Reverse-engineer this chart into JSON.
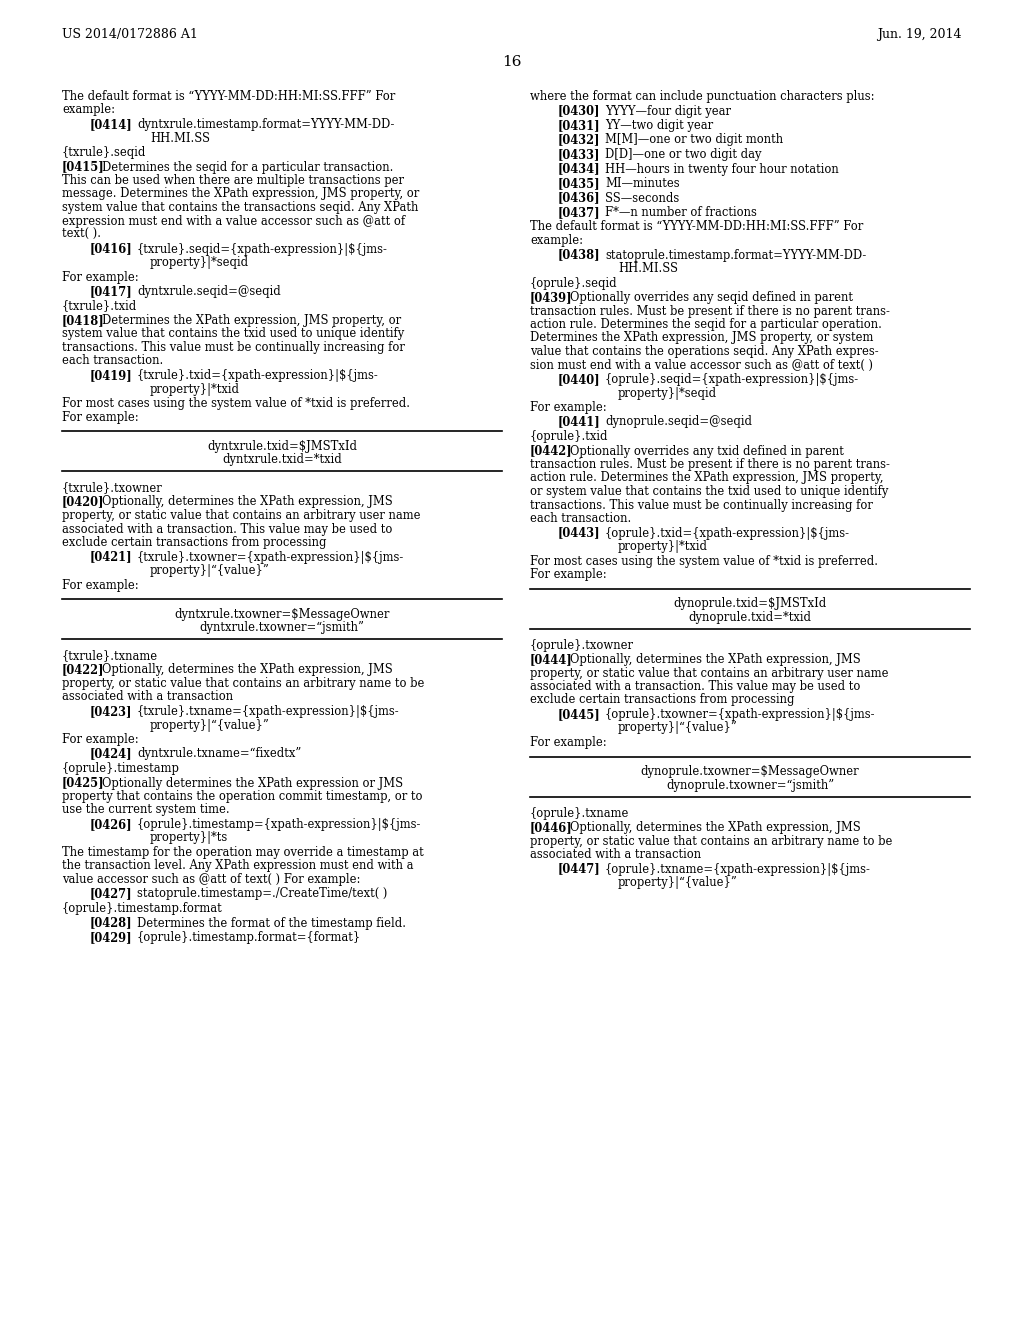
{
  "background_color": "#ffffff",
  "header_left": "US 2014/0172886 A1",
  "header_right": "Jun. 19, 2014",
  "page_number": "16",
  "left_col_blocks": [
    {
      "type": "plain",
      "lines": [
        "The default format is “YYYY-MM-DD:HH:MI:SS.FFF” For",
        "example:"
      ]
    },
    {
      "type": "tagged_indent",
      "tag": "[0414]",
      "continuation": "         ",
      "text": "dyntxrule.timestamp.format=YYYY-MM-DD-\nHH.MI.SS"
    },
    {
      "type": "plain",
      "lines": [
        "{txrule}.seqid"
      ]
    },
    {
      "type": "tagged_para",
      "tag": "[0415]",
      "text": "Determines the seqid for a particular transaction.\nThis can be used when there are multiple transactions per\nmessage. Determines the XPath expression, JMS property, or\nsystem value that contains the transactions seqid. Any XPath\nexpression must end with a value accessor such as @att of\ntext( )."
    },
    {
      "type": "tagged_indent",
      "tag": "[0416]",
      "continuation": "         ",
      "text": "{txrule}.seqid={xpath-expression}|${jms-\nproperty}|*seqid"
    },
    {
      "type": "plain",
      "lines": [
        "For example:"
      ]
    },
    {
      "type": "tagged_indent",
      "tag": "[0417]",
      "continuation": "",
      "text": "dyntxrule.seqid=@seqid"
    },
    {
      "type": "plain",
      "lines": [
        "{txrule}.txid"
      ]
    },
    {
      "type": "tagged_para",
      "tag": "[0418]",
      "text": "Determines the XPath expression, JMS property, or\nsystem value that contains the txid used to unique identify\ntransactions. This value must be continually increasing for\neach transaction."
    },
    {
      "type": "tagged_indent",
      "tag": "[0419]",
      "continuation": "         ",
      "text": "{txrule}.txid={xpath-expression}|${jms-\nproperty}|*txid"
    },
    {
      "type": "plain",
      "lines": [
        "For most cases using the system value of *txid is preferred.",
        "For example:"
      ]
    },
    {
      "type": "box",
      "lines": [
        "dyntxrule.txid=$JMSTxId",
        "dyntxrule.txid=*txid"
      ]
    },
    {
      "type": "plain",
      "lines": [
        "{txrule}.txowner"
      ]
    },
    {
      "type": "tagged_para",
      "tag": "[0420]",
      "text": "Optionally, determines the XPath expression, JMS\nproperty, or static value that contains an arbitrary user name\nassociated with a transaction. This value may be used to\nexclude certain transactions from processing"
    },
    {
      "type": "tagged_indent",
      "tag": "[0421]",
      "continuation": "         ",
      "text": "{txrule}.txowner={xpath-expression}|${jms-\nproperty}|“{value}”"
    },
    {
      "type": "plain",
      "lines": [
        "For example:"
      ]
    },
    {
      "type": "box",
      "lines": [
        "dyntxrule.txowner=$MessageOwner",
        "dyntxrule.txowner=“jsmith”"
      ]
    },
    {
      "type": "plain",
      "lines": [
        "{txrule}.txname"
      ]
    },
    {
      "type": "tagged_para",
      "tag": "[0422]",
      "text": "Optionally, determines the XPath expression, JMS\nproperty, or static value that contains an arbitrary name to be\nassociated with a transaction"
    },
    {
      "type": "tagged_indent",
      "tag": "[0423]",
      "continuation": "         ",
      "text": "{txrule}.txname={xpath-expression}|${jms-\nproperty}|“{value}”"
    },
    {
      "type": "plain",
      "lines": [
        "For example:"
      ]
    },
    {
      "type": "tagged_indent",
      "tag": "[0424]",
      "continuation": "",
      "text": "dyntxrule.txname=“fixedtx”"
    },
    {
      "type": "plain",
      "lines": [
        "{oprule}.timestamp"
      ]
    },
    {
      "type": "tagged_para",
      "tag": "[0425]",
      "text": "Optionally determines the XPath expression or JMS\nproperty that contains the operation commit timestamp, or to\nuse the current system time."
    },
    {
      "type": "tagged_indent",
      "tag": "[0426]",
      "continuation": "         ",
      "text": "{oprule}.timestamp={xpath-expression}|${jms-\nproperty}|*ts"
    },
    {
      "type": "plain",
      "lines": [
        "The timestamp for the operation may override a timestamp at",
        "the transaction level. Any XPath expression must end with a",
        "value accessor such as @att of text( ) For example:"
      ]
    },
    {
      "type": "tagged_indent",
      "tag": "[0427]",
      "continuation": "",
      "text": "statoprule.timestamp=./CreateTime/text( )"
    },
    {
      "type": "plain",
      "lines": [
        "{oprule}.timestamp.format"
      ]
    },
    {
      "type": "tagged_indent",
      "tag": "[0428]",
      "continuation": "",
      "text": "Determines the format of the timestamp field."
    },
    {
      "type": "tagged_indent",
      "tag": "[0429]",
      "continuation": "",
      "text": "{oprule}.timestamp.format={format}"
    }
  ],
  "right_col_blocks": [
    {
      "type": "plain",
      "lines": [
        "where the format can include punctuation characters plus:"
      ]
    },
    {
      "type": "tagged_indent",
      "tag": "[0430]",
      "continuation": "",
      "text": "YYYY—four digit year"
    },
    {
      "type": "tagged_indent",
      "tag": "[0431]",
      "continuation": "",
      "text": "YY—two digit year"
    },
    {
      "type": "tagged_indent",
      "tag": "[0432]",
      "continuation": "",
      "text": "M[M]—one or two digit month"
    },
    {
      "type": "tagged_indent",
      "tag": "[0433]",
      "continuation": "",
      "text": "D[D]—one or two digit day"
    },
    {
      "type": "tagged_indent",
      "tag": "[0434]",
      "continuation": "",
      "text": "HH—hours in twenty four hour notation"
    },
    {
      "type": "tagged_indent",
      "tag": "[0435]",
      "continuation": "",
      "text": "MI—minutes"
    },
    {
      "type": "tagged_indent",
      "tag": "[0436]",
      "continuation": "",
      "text": "SS—seconds"
    },
    {
      "type": "tagged_indent",
      "tag": "[0437]",
      "continuation": "",
      "text": "F*—n number of fractions"
    },
    {
      "type": "plain",
      "lines": [
        "The default format is “YYYY-MM-DD:HH:MI:SS.FFF” For",
        "example:"
      ]
    },
    {
      "type": "tagged_indent",
      "tag": "[0438]",
      "continuation": "         ",
      "text": "statoprule.timestamp.format=YYYY-MM-DD-\nHH.MI.SS"
    },
    {
      "type": "plain",
      "lines": [
        "{oprule}.seqid"
      ]
    },
    {
      "type": "tagged_para",
      "tag": "[0439]",
      "text": "Optionally overrides any seqid defined in parent\ntransaction rules. Must be present if there is no parent trans-\naction rule. Determines the seqid for a particular operation.\nDetermines the XPath expression, JMS property, or system\nvalue that contains the operations seqid. Any XPath expres-\nsion must end with a value accessor such as @att of text( )"
    },
    {
      "type": "tagged_indent",
      "tag": "[0440]",
      "continuation": "         ",
      "text": "{oprule}.seqid={xpath-expression}|${jms-\nproperty}|*seqid"
    },
    {
      "type": "plain",
      "lines": [
        "For example:"
      ]
    },
    {
      "type": "tagged_indent",
      "tag": "[0441]",
      "continuation": "",
      "text": "dynoprule.seqid=@seqid"
    },
    {
      "type": "plain",
      "lines": [
        "{oprule}.txid"
      ]
    },
    {
      "type": "tagged_para",
      "tag": "[0442]",
      "text": "Optionally overrides any txid defined in parent\ntransaction rules. Must be present if there is no parent trans-\naction rule. Determines the XPath expression, JMS property,\nor system value that contains the txid used to unique identify\ntransactions. This value must be continually increasing for\neach transaction."
    },
    {
      "type": "tagged_indent",
      "tag": "[0443]",
      "continuation": "         ",
      "text": "{oprule}.txid={xpath-expression}|${jms-\nproperty}|*txid"
    },
    {
      "type": "plain",
      "lines": [
        "For most cases using the system value of *txid is preferred.",
        "For example:"
      ]
    },
    {
      "type": "box",
      "lines": [
        "dynoprule.txid=$JMSTxId",
        "dynoprule.txid=*txid"
      ]
    },
    {
      "type": "plain",
      "lines": [
        "{oprule}.txowner"
      ]
    },
    {
      "type": "tagged_para",
      "tag": "[0444]",
      "text": "Optionally, determines the XPath expression, JMS\nproperty, or static value that contains an arbitrary user name\nassociated with a transaction. This value may be used to\nexclude certain transactions from processing"
    },
    {
      "type": "tagged_indent",
      "tag": "[0445]",
      "continuation": "         ",
      "text": "{oprule}.txowner={xpath-expression}|${jms-\nproperty}|“{value}”"
    },
    {
      "type": "plain",
      "lines": [
        "For example:"
      ]
    },
    {
      "type": "box",
      "lines": [
        "dynoprule.txowner=$MessageOwner",
        "dynoprule.txowner=“jsmith”"
      ]
    },
    {
      "type": "plain",
      "lines": [
        "{oprule}.txname"
      ]
    },
    {
      "type": "tagged_para",
      "tag": "[0446]",
      "text": "Optionally, determines the XPath expression, JMS\nproperty, or static value that contains an arbitrary name to be\nassociated with a transaction"
    },
    {
      "type": "tagged_indent",
      "tag": "[0447]",
      "continuation": "         ",
      "text": "{oprule}.txname={xpath-expression}|${jms-\nproperty}|“{value}”"
    }
  ]
}
